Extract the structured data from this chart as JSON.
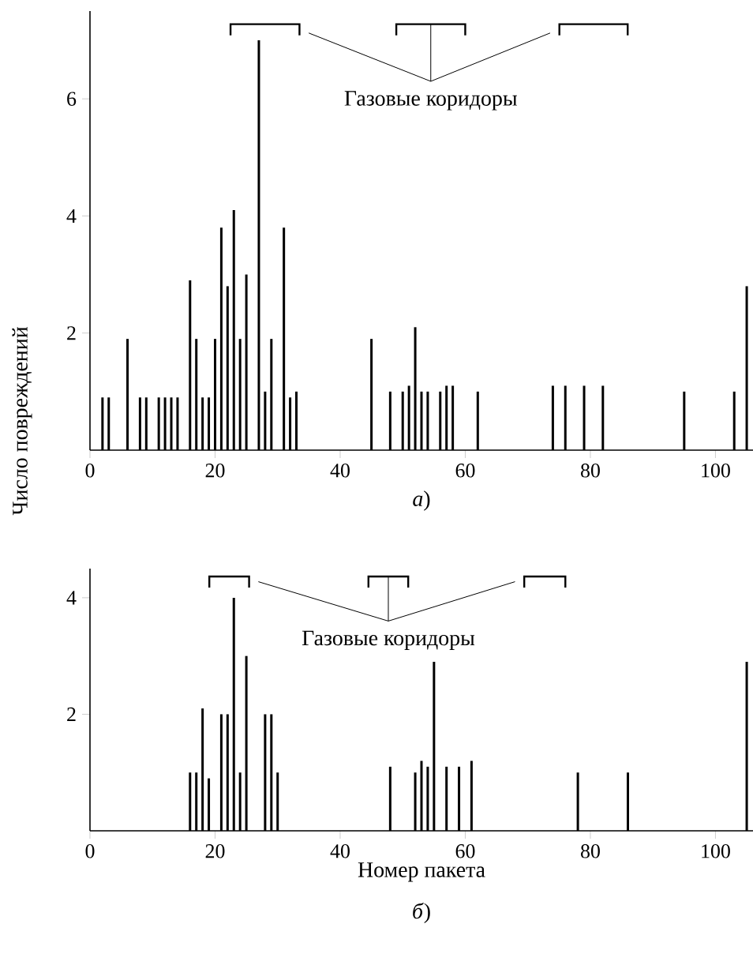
{
  "chart_data": [
    {
      "type": "bar",
      "ylabel": "Число повреждений",
      "xlim": [
        0,
        106
      ],
      "ylim": [
        0,
        7.5
      ],
      "xticks": [
        0,
        20,
        40,
        60,
        80,
        100
      ],
      "yticks": [
        2,
        4,
        6
      ],
      "x": [
        2,
        3,
        6,
        8,
        9,
        11,
        12,
        13,
        14,
        16,
        17,
        18,
        19,
        20,
        21,
        22,
        23,
        24,
        25,
        27,
        28,
        29,
        31,
        32,
        33,
        45,
        48,
        50,
        51,
        52,
        53,
        54,
        56,
        57,
        58,
        62,
        74,
        76,
        79,
        82,
        95,
        103,
        105
      ],
      "series": [
        {
          "color": "#000000",
          "values": [
            0.9,
            0.9,
            1.9,
            0.9,
            0.9,
            0.9,
            0.9,
            0.9,
            0.9,
            2.9,
            1.9,
            0.9,
            0.9,
            1.9,
            3.8,
            2.8,
            4.1,
            1.9,
            3.0,
            7.0,
            1.0,
            1.9,
            3.8,
            0.9,
            1.0,
            1.9,
            1.0,
            1.0,
            1.1,
            2.1,
            1.0,
            1.0,
            1.0,
            1.1,
            1.1,
            1.0,
            1.1,
            1.1,
            1.1,
            1.1,
            1.0,
            1.0,
            2.8
          ]
        }
      ],
      "annotations": [
        "Газовые коридоры",
        "*а*)"
      ]
    },
    {
      "type": "bar",
      "xlabel": "Номер пакета",
      "xlim": [
        0,
        106
      ],
      "ylim": [
        0,
        4.5
      ],
      "xticks": [
        0,
        20,
        40,
        60,
        80,
        100
      ],
      "yticks": [
        2,
        4
      ],
      "x": [
        16,
        17,
        18,
        19,
        21,
        22,
        23,
        24,
        25,
        28,
        29,
        30,
        48,
        52,
        53,
        54,
        55,
        57,
        59,
        61,
        78,
        86,
        105
      ],
      "series": [
        {
          "color": "#000000",
          "values": [
            1.0,
            1.0,
            2.1,
            0.9,
            2.0,
            2.0,
            4.0,
            1.0,
            3.0,
            2.0,
            2.0,
            1.0,
            1.1,
            1.0,
            1.2,
            1.1,
            2.9,
            1.1,
            1.1,
            1.2,
            1.0,
            1.0,
            2.9
          ]
        }
      ],
      "annotations": [
        "Газовые коридоры",
        "*б*)"
      ]
    }
  ]
}
